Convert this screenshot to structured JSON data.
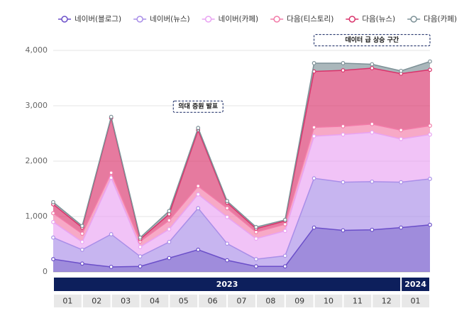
{
  "chart_data": {
    "type": "stacked_area",
    "categories": [
      "01",
      "02",
      "03",
      "04",
      "05",
      "06",
      "07",
      "08",
      "09",
      "10",
      "11",
      "12",
      "01",
      null
    ],
    "years": [
      "2023",
      "2023",
      "2023",
      "2023",
      "2023",
      "2023",
      "2023",
      "2023",
      "2023",
      "2023",
      "2023",
      "2023",
      "2024",
      null
    ],
    "series": [
      {
        "name": "네이버(블로그)",
        "color": "#6b4fc9",
        "values": [
          230,
          150,
          90,
          100,
          250,
          400,
          210,
          100,
          100,
          800,
          750,
          760,
          800,
          850
        ]
      },
      {
        "name": "네이버(뉴스)",
        "color": "#a98ee8",
        "values": [
          390,
          250,
          590,
          180,
          290,
          750,
          300,
          130,
          190,
          890,
          870,
          870,
          820,
          830
        ]
      },
      {
        "name": "네이버(카페)",
        "color": "#e9a3f2",
        "values": [
          280,
          140,
          1020,
          170,
          230,
          250,
          480,
          370,
          450,
          760,
          860,
          890,
          780,
          800
        ]
      },
      {
        "name": "다음(티스토리)",
        "color": "#f27ba8",
        "values": [
          160,
          150,
          90,
          100,
          160,
          150,
          160,
          120,
          120,
          160,
          150,
          150,
          160,
          160
        ]
      },
      {
        "name": "다음(뉴스)",
        "color": "#d9336b",
        "values": [
          160,
          110,
          990,
          40,
          110,
          1010,
          100,
          60,
          60,
          1010,
          1010,
          1010,
          1020,
          1010
        ]
      },
      {
        "name": "다음(카페)",
        "color": "#7d9197",
        "values": [
          40,
          30,
          20,
          30,
          60,
          40,
          30,
          30,
          20,
          150,
          130,
          70,
          50,
          150
        ]
      }
    ],
    "annotations": [
      {
        "text": "의대 증원 발표",
        "from": 5,
        "to": 5
      },
      {
        "text": "데이터 급 상승 구간",
        "from": 9,
        "to": 13
      }
    ],
    "ylim": [
      0,
      4000
    ],
    "yticks": [
      0,
      {
        "value": 1000,
        "label": "1,000"
      },
      {
        "value": 2000,
        "label": "2,000"
      },
      {
        "value": 3000,
        "label": "3,000"
      },
      {
        "value": 4000,
        "label": "4,000"
      }
    ],
    "grid": true
  }
}
